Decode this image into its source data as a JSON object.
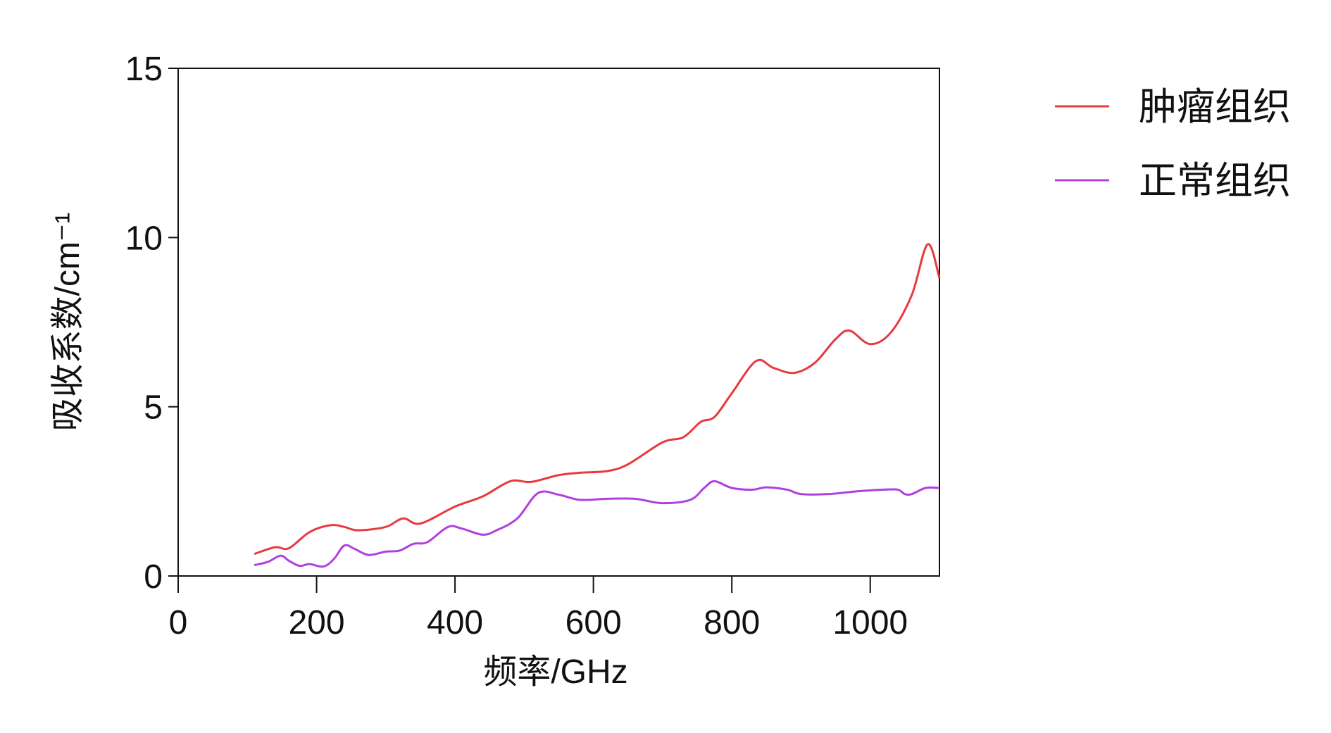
{
  "chart_data": {
    "type": "line",
    "xlabel": "频率/GHz",
    "ylabel": "吸收系数/cm⁻¹",
    "xlim": [
      0,
      1100
    ],
    "xticks": [
      0,
      200,
      400,
      600,
      800,
      1000
    ],
    "ylim": [
      0,
      15
    ],
    "yticks": [
      0,
      5,
      10,
      15
    ],
    "legend": "outside-right",
    "series": [
      {
        "name": "肿瘤组织",
        "color": "#e8393f",
        "x": [
          110,
          140,
          160,
          190,
          220,
          240,
          260,
          300,
          325,
          350,
          400,
          440,
          480,
          510,
          550,
          580,
          620,
          650,
          700,
          730,
          755,
          775,
          800,
          835,
          860,
          890,
          920,
          950,
          970,
          1000,
          1030,
          1060,
          1083,
          1100
        ],
        "values": [
          0.65,
          0.85,
          0.82,
          1.3,
          1.5,
          1.45,
          1.35,
          1.45,
          1.7,
          1.55,
          2.05,
          2.35,
          2.8,
          2.78,
          2.98,
          3.05,
          3.1,
          3.3,
          3.95,
          4.1,
          4.55,
          4.7,
          5.4,
          6.35,
          6.15,
          6.0,
          6.3,
          7.0,
          7.25,
          6.85,
          7.2,
          8.3,
          9.8,
          8.8
        ]
      },
      {
        "name": "正常组织",
        "color": "#b03fe0",
        "x": [
          110,
          130,
          148,
          160,
          175,
          190,
          210,
          225,
          240,
          255,
          275,
          300,
          320,
          340,
          360,
          390,
          410,
          440,
          460,
          490,
          520,
          550,
          580,
          620,
          660,
          700,
          740,
          760,
          775,
          800,
          830,
          850,
          880,
          900,
          940,
          980,
          1020,
          1040,
          1050,
          1060,
          1080,
          1100
        ],
        "values": [
          0.32,
          0.42,
          0.6,
          0.45,
          0.3,
          0.35,
          0.28,
          0.5,
          0.9,
          0.8,
          0.62,
          0.72,
          0.75,
          0.95,
          1.0,
          1.45,
          1.4,
          1.22,
          1.35,
          1.7,
          2.45,
          2.4,
          2.25,
          2.28,
          2.28,
          2.15,
          2.25,
          2.6,
          2.8,
          2.6,
          2.55,
          2.62,
          2.55,
          2.42,
          2.42,
          2.5,
          2.55,
          2.55,
          2.42,
          2.42,
          2.6,
          2.6
        ]
      }
    ]
  }
}
